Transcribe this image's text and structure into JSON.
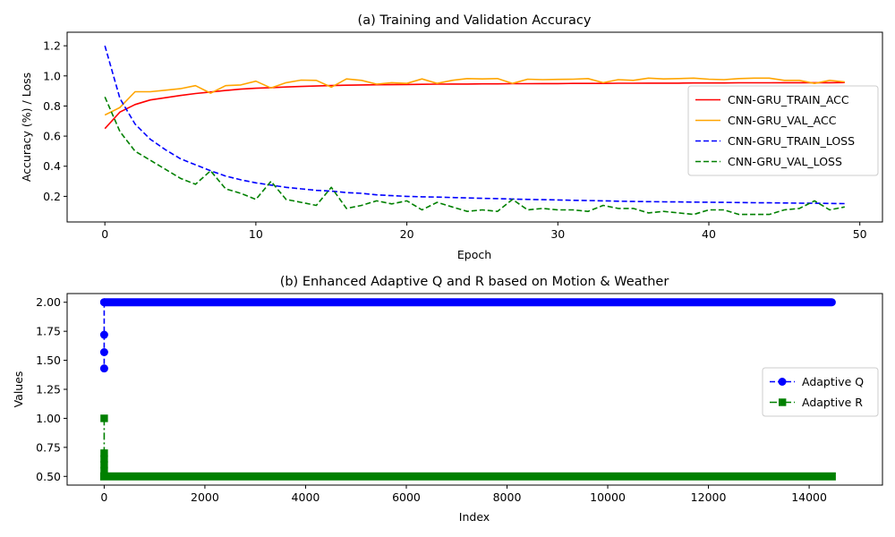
{
  "chart_data": [
    {
      "type": "line",
      "title": "(a) Training and Validation Accuracy",
      "xlabel": "Epoch",
      "ylabel": "Accuracy (%) / Loss",
      "xlim": [
        -2.5,
        51.5
      ],
      "ylim": [
        0.03,
        1.29
      ],
      "xticks": [
        0,
        10,
        20,
        30,
        40,
        50
      ],
      "yticks": [
        0.2,
        0.4,
        0.6,
        0.8,
        1.0,
        1.2
      ],
      "xtick_labels": [
        "0",
        "10",
        "20",
        "30",
        "40",
        "50"
      ],
      "ytick_labels": [
        "0.2",
        "0.4",
        "0.6",
        "0.8",
        "1.0",
        "1.2"
      ],
      "grid": false,
      "legend_position": "center-right",
      "x": [
        0,
        1,
        2,
        3,
        4,
        5,
        6,
        7,
        8,
        9,
        10,
        11,
        12,
        13,
        14,
        15,
        16,
        17,
        18,
        19,
        20,
        21,
        22,
        23,
        24,
        25,
        26,
        27,
        28,
        29,
        30,
        31,
        32,
        33,
        34,
        35,
        36,
        37,
        38,
        39,
        40,
        41,
        42,
        43,
        44,
        45,
        46,
        47,
        48,
        49
      ],
      "series": [
        {
          "name": "CNN-GRU_TRAIN_ACC",
          "color": "#ff0000",
          "style": "solid",
          "values": [
            0.65,
            0.76,
            0.81,
            0.84,
            0.855,
            0.87,
            0.883,
            0.893,
            0.903,
            0.912,
            0.918,
            0.922,
            0.926,
            0.93,
            0.933,
            0.936,
            0.938,
            0.94,
            0.941,
            0.942,
            0.943,
            0.944,
            0.945,
            0.946,
            0.946,
            0.947,
            0.947,
            0.948,
            0.948,
            0.949,
            0.949,
            0.95,
            0.95,
            0.95,
            0.951,
            0.951,
            0.952,
            0.952,
            0.952,
            0.953,
            0.953,
            0.953,
            0.954,
            0.954,
            0.954,
            0.955,
            0.955,
            0.955,
            0.955,
            0.956
          ]
        },
        {
          "name": "CNN-GRU_VAL_ACC",
          "color": "#ffa500",
          "style": "solid",
          "values": [
            0.74,
            0.79,
            0.895,
            0.895,
            0.905,
            0.915,
            0.935,
            0.885,
            0.935,
            0.94,
            0.965,
            0.92,
            0.955,
            0.972,
            0.97,
            0.925,
            0.98,
            0.97,
            0.945,
            0.955,
            0.95,
            0.98,
            0.95,
            0.97,
            0.982,
            0.98,
            0.982,
            0.95,
            0.978,
            0.975,
            0.977,
            0.978,
            0.982,
            0.955,
            0.975,
            0.97,
            0.985,
            0.98,
            0.982,
            0.985,
            0.978,
            0.975,
            0.982,
            0.985,
            0.985,
            0.97,
            0.97,
            0.95,
            0.97,
            0.96
          ]
        },
        {
          "name": "CNN-GRU_TRAIN_LOSS",
          "color": "#0000ff",
          "style": "dashed",
          "values": [
            1.2,
            0.85,
            0.68,
            0.58,
            0.51,
            0.45,
            0.41,
            0.37,
            0.335,
            0.31,
            0.29,
            0.275,
            0.26,
            0.25,
            0.24,
            0.235,
            0.225,
            0.22,
            0.21,
            0.205,
            0.2,
            0.197,
            0.195,
            0.192,
            0.19,
            0.187,
            0.185,
            0.182,
            0.18,
            0.178,
            0.176,
            0.174,
            0.172,
            0.17,
            0.168,
            0.166,
            0.165,
            0.164,
            0.163,
            0.162,
            0.161,
            0.16,
            0.159,
            0.158,
            0.157,
            0.156,
            0.155,
            0.154,
            0.153,
            0.152
          ]
        },
        {
          "name": "CNN-GRU_VAL_LOSS",
          "color": "#008000",
          "style": "dashed",
          "values": [
            0.86,
            0.63,
            0.5,
            0.44,
            0.38,
            0.32,
            0.28,
            0.37,
            0.25,
            0.22,
            0.18,
            0.3,
            0.18,
            0.16,
            0.14,
            0.26,
            0.12,
            0.14,
            0.17,
            0.15,
            0.17,
            0.11,
            0.16,
            0.13,
            0.1,
            0.11,
            0.1,
            0.18,
            0.11,
            0.12,
            0.11,
            0.11,
            0.1,
            0.14,
            0.12,
            0.12,
            0.09,
            0.1,
            0.09,
            0.08,
            0.11,
            0.11,
            0.08,
            0.08,
            0.08,
            0.11,
            0.12,
            0.17,
            0.11,
            0.13
          ]
        }
      ]
    },
    {
      "type": "line",
      "title": "(b) Enhanced Adaptive Q and R based on Motion & Weather",
      "xlabel": "Index",
      "ylabel": "Values",
      "xlim": [
        -736,
        15456
      ],
      "ylim": [
        0.425,
        2.075
      ],
      "xticks": [
        0,
        2000,
        4000,
        6000,
        8000,
        10000,
        12000,
        14000
      ],
      "yticks": [
        0.5,
        0.75,
        1.0,
        1.25,
        1.5,
        1.75,
        2.0
      ],
      "xtick_labels": [
        "0",
        "2000",
        "4000",
        "6000",
        "8000",
        "10000",
        "12000",
        "14000"
      ],
      "ytick_labels": [
        "0.50",
        "0.75",
        "1.00",
        "1.25",
        "1.50",
        "1.75",
        "2.00"
      ],
      "grid": false,
      "legend_position": "center-right",
      "series": [
        {
          "name": "Adaptive Q",
          "color": "#0000ff",
          "style": "dashed",
          "marker": "circle",
          "transient_x": [
            0,
            0,
            0,
            0
          ],
          "transient_y": [
            1.43,
            1.57,
            1.72,
            2.0
          ],
          "steady_value": 2.0,
          "x_range": [
            0,
            14450
          ]
        },
        {
          "name": "Adaptive R",
          "color": "#008000",
          "style": "dashdot",
          "marker": "square",
          "transient_x": [
            0,
            0,
            0,
            0,
            0
          ],
          "transient_y": [
            1.0,
            0.7,
            0.65,
            0.6,
            0.55
          ],
          "steady_value": 0.5,
          "x_range": [
            0,
            14450
          ]
        }
      ]
    }
  ]
}
